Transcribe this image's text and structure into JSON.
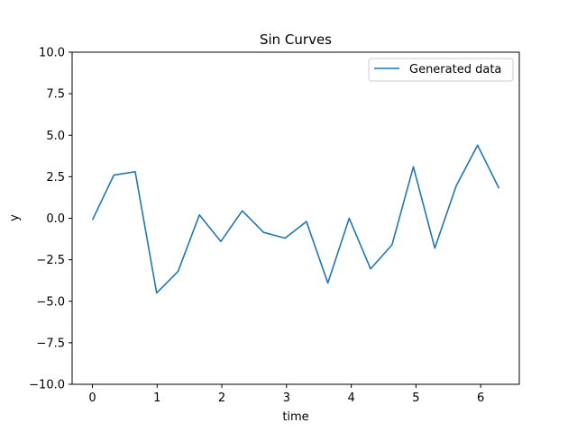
{
  "chart_data": {
    "type": "line",
    "title": "Sin Curves",
    "xlabel": "time",
    "ylabel": "y",
    "xlim": [
      -0.314,
      6.597
    ],
    "ylim": [
      -10,
      10
    ],
    "xticks": [
      0,
      1,
      2,
      3,
      4,
      5,
      6
    ],
    "xtick_labels": [
      "0",
      "1",
      "2",
      "3",
      "4",
      "5",
      "6"
    ],
    "yticks": [
      -10,
      -7.5,
      -5,
      -2.5,
      0,
      2.5,
      5,
      7.5,
      10
    ],
    "ytick_labels": [
      "−10.0",
      "−7.5",
      "−5.0",
      "−2.5",
      "0.0",
      "2.5",
      "5.0",
      "7.5",
      "10.0"
    ],
    "grid": false,
    "legend_position": "top-right",
    "series": [
      {
        "name": "Generated data",
        "color": "#1f77b4",
        "x": [
          0.0,
          0.331,
          0.661,
          0.992,
          1.323,
          1.653,
          1.984,
          2.315,
          2.645,
          2.976,
          3.307,
          3.638,
          3.968,
          4.299,
          4.63,
          4.96,
          5.291,
          5.622,
          5.952,
          6.283
        ],
        "y": [
          -0.1,
          2.6,
          2.8,
          -4.5,
          -3.2,
          0.2,
          -1.4,
          0.45,
          -0.85,
          -1.2,
          -0.2,
          -3.9,
          0.0,
          -3.05,
          -1.6,
          3.1,
          -1.8,
          1.95,
          4.4,
          1.8
        ]
      }
    ]
  }
}
